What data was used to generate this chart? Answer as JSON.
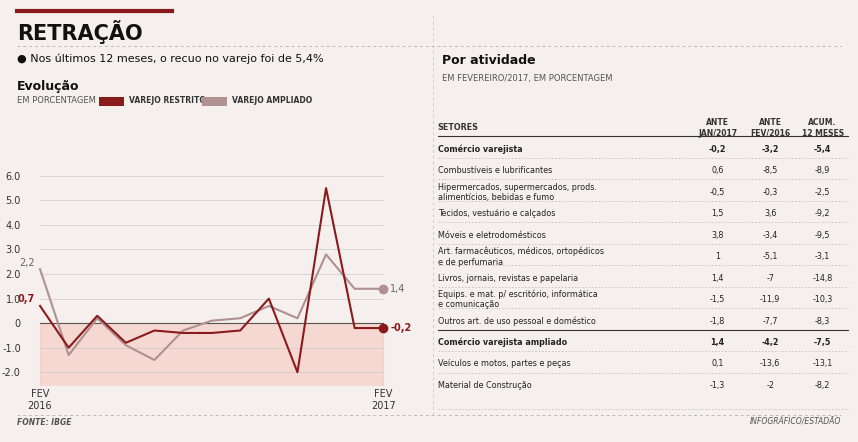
{
  "title": "RETRAÇÃO",
  "subtitle": "Nos últimos 12 meses, o recuo no varejo foi de 5,4%",
  "left_title": "Evolução",
  "left_subtitle": "EM PORCENTAGEM",
  "legend1": "VAREJO RESTRITO",
  "legend2": "VAREJO AMPLIADO",
  "color_restrito": "#8B1A1A",
  "color_ampliado": "#b09090",
  "bg_color": "#f5f0ed",
  "shading_color": "#f5c8c0",
  "fonte": "FONTE: IBGE",
  "infografico": "INFOGRÁFICO/ESTADÃO",
  "n_points": 13,
  "varejo_restrito": [
    0.7,
    -1.0,
    0.3,
    -0.8,
    -0.3,
    -0.4,
    -0.4,
    -0.3,
    1.0,
    -2.0,
    5.5,
    -0.2,
    -0.2
  ],
  "varejo_ampliado": [
    2.2,
    -1.3,
    0.2,
    -0.9,
    -1.5,
    -0.3,
    0.1,
    0.2,
    0.7,
    0.2,
    2.8,
    1.4,
    1.4
  ],
  "ylim": [
    -2.5,
    6.5
  ],
  "yticks": [
    -2.0,
    -1.0,
    0.0,
    1.0,
    2.0,
    3.0,
    4.0,
    5.0,
    6.0
  ],
  "right_title": "Por atividade",
  "right_subtitle": "EM FEVEREIRO/2017, EM PORCENTAGEM",
  "col_headers": [
    "SETORES",
    "ANTE\nJAN/2017",
    "ANTE\nFEV/2016",
    "ACUM.\n12 MESES"
  ],
  "table_rows": [
    [
      "Comércio varejista",
      "-0,2",
      "-3,2",
      "-5,4",
      true
    ],
    [
      "Combustíveis e lubrificantes",
      "0,6",
      "-8,5",
      "-8,9",
      false
    ],
    [
      "Hipermercados, supermercados, prods.\nalimentícios, bebidas e fumo",
      "-0,5",
      "-0,3",
      "-2,5",
      false
    ],
    [
      "Tecidos, vestuário e calçados",
      "1,5",
      "3,6",
      "-9,2",
      false
    ],
    [
      "Móveis e eletrodomésticos",
      "3,8",
      "-3,4",
      "-9,5",
      false
    ],
    [
      "Art. farmacêuticos, médicos, ortopédicos\ne de perfumaria",
      "1",
      "-5,1",
      "-3,1",
      false
    ],
    [
      "Livros, jornais, revistas e papelaria",
      "1,4",
      "-7",
      "-14,8",
      false
    ],
    [
      "Equips. e mat. p/ escritório, informática\ne comunicação",
      "-1,5",
      "-11,9",
      "-10,3",
      false
    ],
    [
      "Outros art. de uso pessoal e doméstico",
      "-1,8",
      "-7,7",
      "-8,3",
      false
    ],
    [
      "Comércio varejista ampliado",
      "1,4",
      "-4,2",
      "-7,5",
      true
    ],
    [
      "Veículos e motos, partes e peças",
      "0,1",
      "-13,6",
      "-13,1",
      false
    ],
    [
      "Material de Construção",
      "-1,3",
      "-2",
      "-8,2",
      false
    ]
  ]
}
